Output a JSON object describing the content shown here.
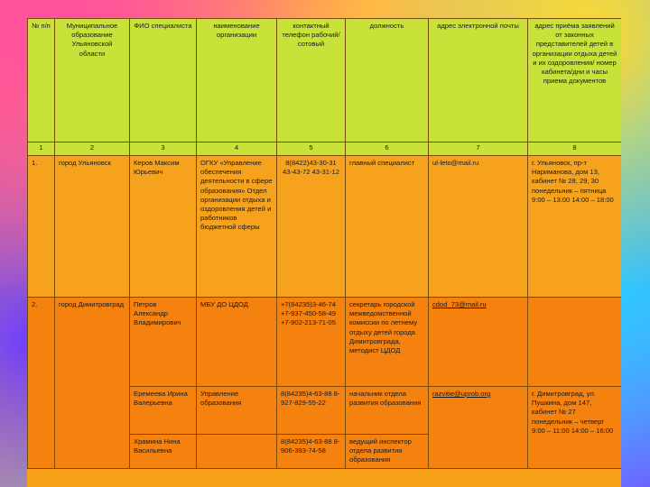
{
  "headers": [
    "№ п/п",
    "Муниципальное образование Ульяновской области",
    "ФИО специалиста",
    "наименование организации",
    "контактный телефон рабочий/сотовый",
    "должность",
    "адрес электронной почты",
    "адрес приёма заявлений от законных представителей детей в организации отдыха детей и их оздоровления/ номер кабинета/дни и часы приема документов"
  ],
  "column_numbers": [
    "1",
    "2",
    "3",
    "4",
    "5",
    "6",
    "7",
    "8"
  ],
  "rows": [
    {
      "num": "1.",
      "municipality": "город Ульяновск",
      "fio": "Керов Максим Юрьевич",
      "org": "ОГКУ «Управление обеспечения деятельности в сфере образования» Отдел организации отдыха и оздоровления детей и работников бюджетной сферы",
      "phone": "8(8422)43-30-31 43-43-72 43-31-12",
      "position": "главный специалист",
      "email": "ul-leto@mail.ru",
      "address": "г. Ульяновск, пр-т Нариманова, дом 13, кабинет № 28, 29, 30 понедельник – пятница 9:00 – 13:00 14:00 – 18:00"
    },
    {
      "num": "2.",
      "municipality": "город Димитровград",
      "fio": "Петров Александр Владимирович",
      "org": "МБУ ДО ЦДОД",
      "phone": "+7(84235)3-46-74 +7-937-450-58-49 +7-902-213-71-05",
      "position": "секретарь городской межведомственной комиссии по летнему отдыху детей города Димитровграда, методист ЦДОД",
      "email": "cdod_73@mail.ru",
      "address": ""
    },
    {
      "fio": "Еремеева Ирина Валерьевна",
      "org": "Управление образования",
      "phone": "8(84235)4-63-88 8-927-829-55-22",
      "position": "начальник отдела развития образования",
      "email": "razvitie@uprob.org",
      "address": "г. Димитровград, ул. Пушкина, дом 147, кабинет № 27 понедельник – четверг 9:00 – 11:00 14:00 – 16:00"
    },
    {
      "fio": "Храмина Нина Васильевна",
      "org": "",
      "phone": "8(84235)4-63-88 8-906-393-74-58",
      "position": "ведущий инспектор отдела развития образования",
      "email": "",
      "address": ""
    }
  ]
}
